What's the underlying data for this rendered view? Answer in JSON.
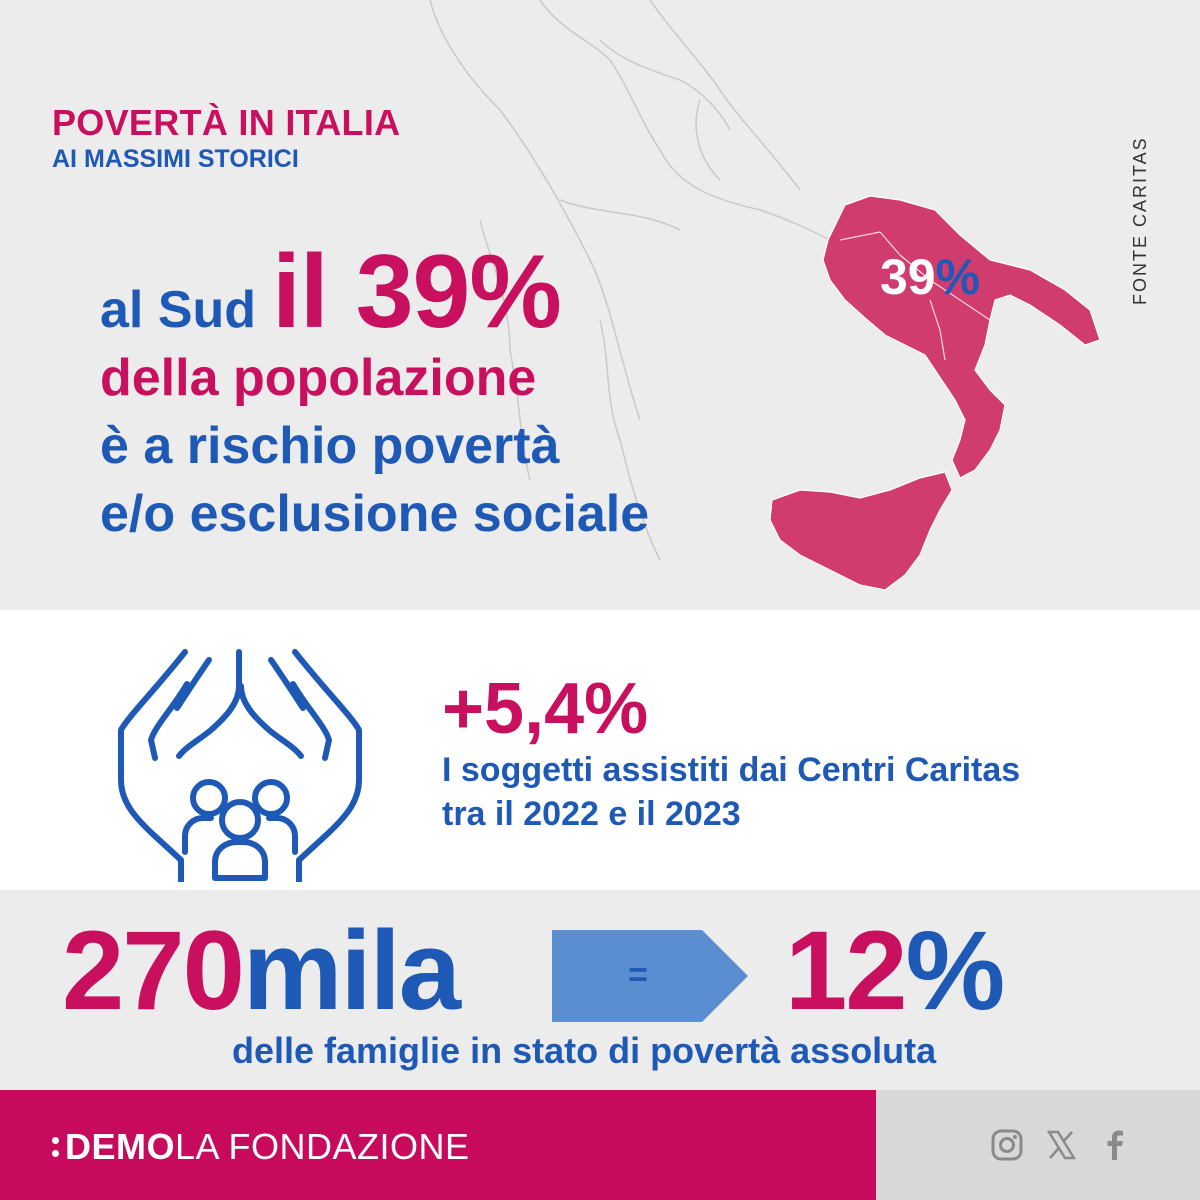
{
  "header": {
    "title": "POVERTÀ IN ITALIA",
    "subtitle": "AI MASSIMI STORICI",
    "source": "FONTE CARITAS"
  },
  "headline": {
    "prefix": "al Sud",
    "highlight": "il 39%",
    "line2": "della popolazione",
    "line3": "è a rischio povertà",
    "line4": "e/o esclusione sociale"
  },
  "map": {
    "label_number": "39",
    "label_percent": "%",
    "highlight_color": "#d03c6e"
  },
  "stat": {
    "value": "+5,4%",
    "line1": "I soggetti assistiti dai Centri Caritas",
    "line2": "tra il 2022 e il 2023",
    "icon": "hands-family-icon"
  },
  "families": {
    "number": "270",
    "unit": "mila",
    "equals": "=",
    "percent_number": "12",
    "percent_sign": "%",
    "caption": "delle famiglie in stato di povertà assoluta"
  },
  "footer": {
    "brand_strong": "DEMO",
    "brand_light": "LA FONDAZIONE",
    "social_icons": [
      "instagram-icon",
      "x-icon",
      "facebook-icon"
    ]
  },
  "colors": {
    "magenta": "#c8105f",
    "blue": "#1f59b6",
    "arrow": "#5b8ed0"
  }
}
